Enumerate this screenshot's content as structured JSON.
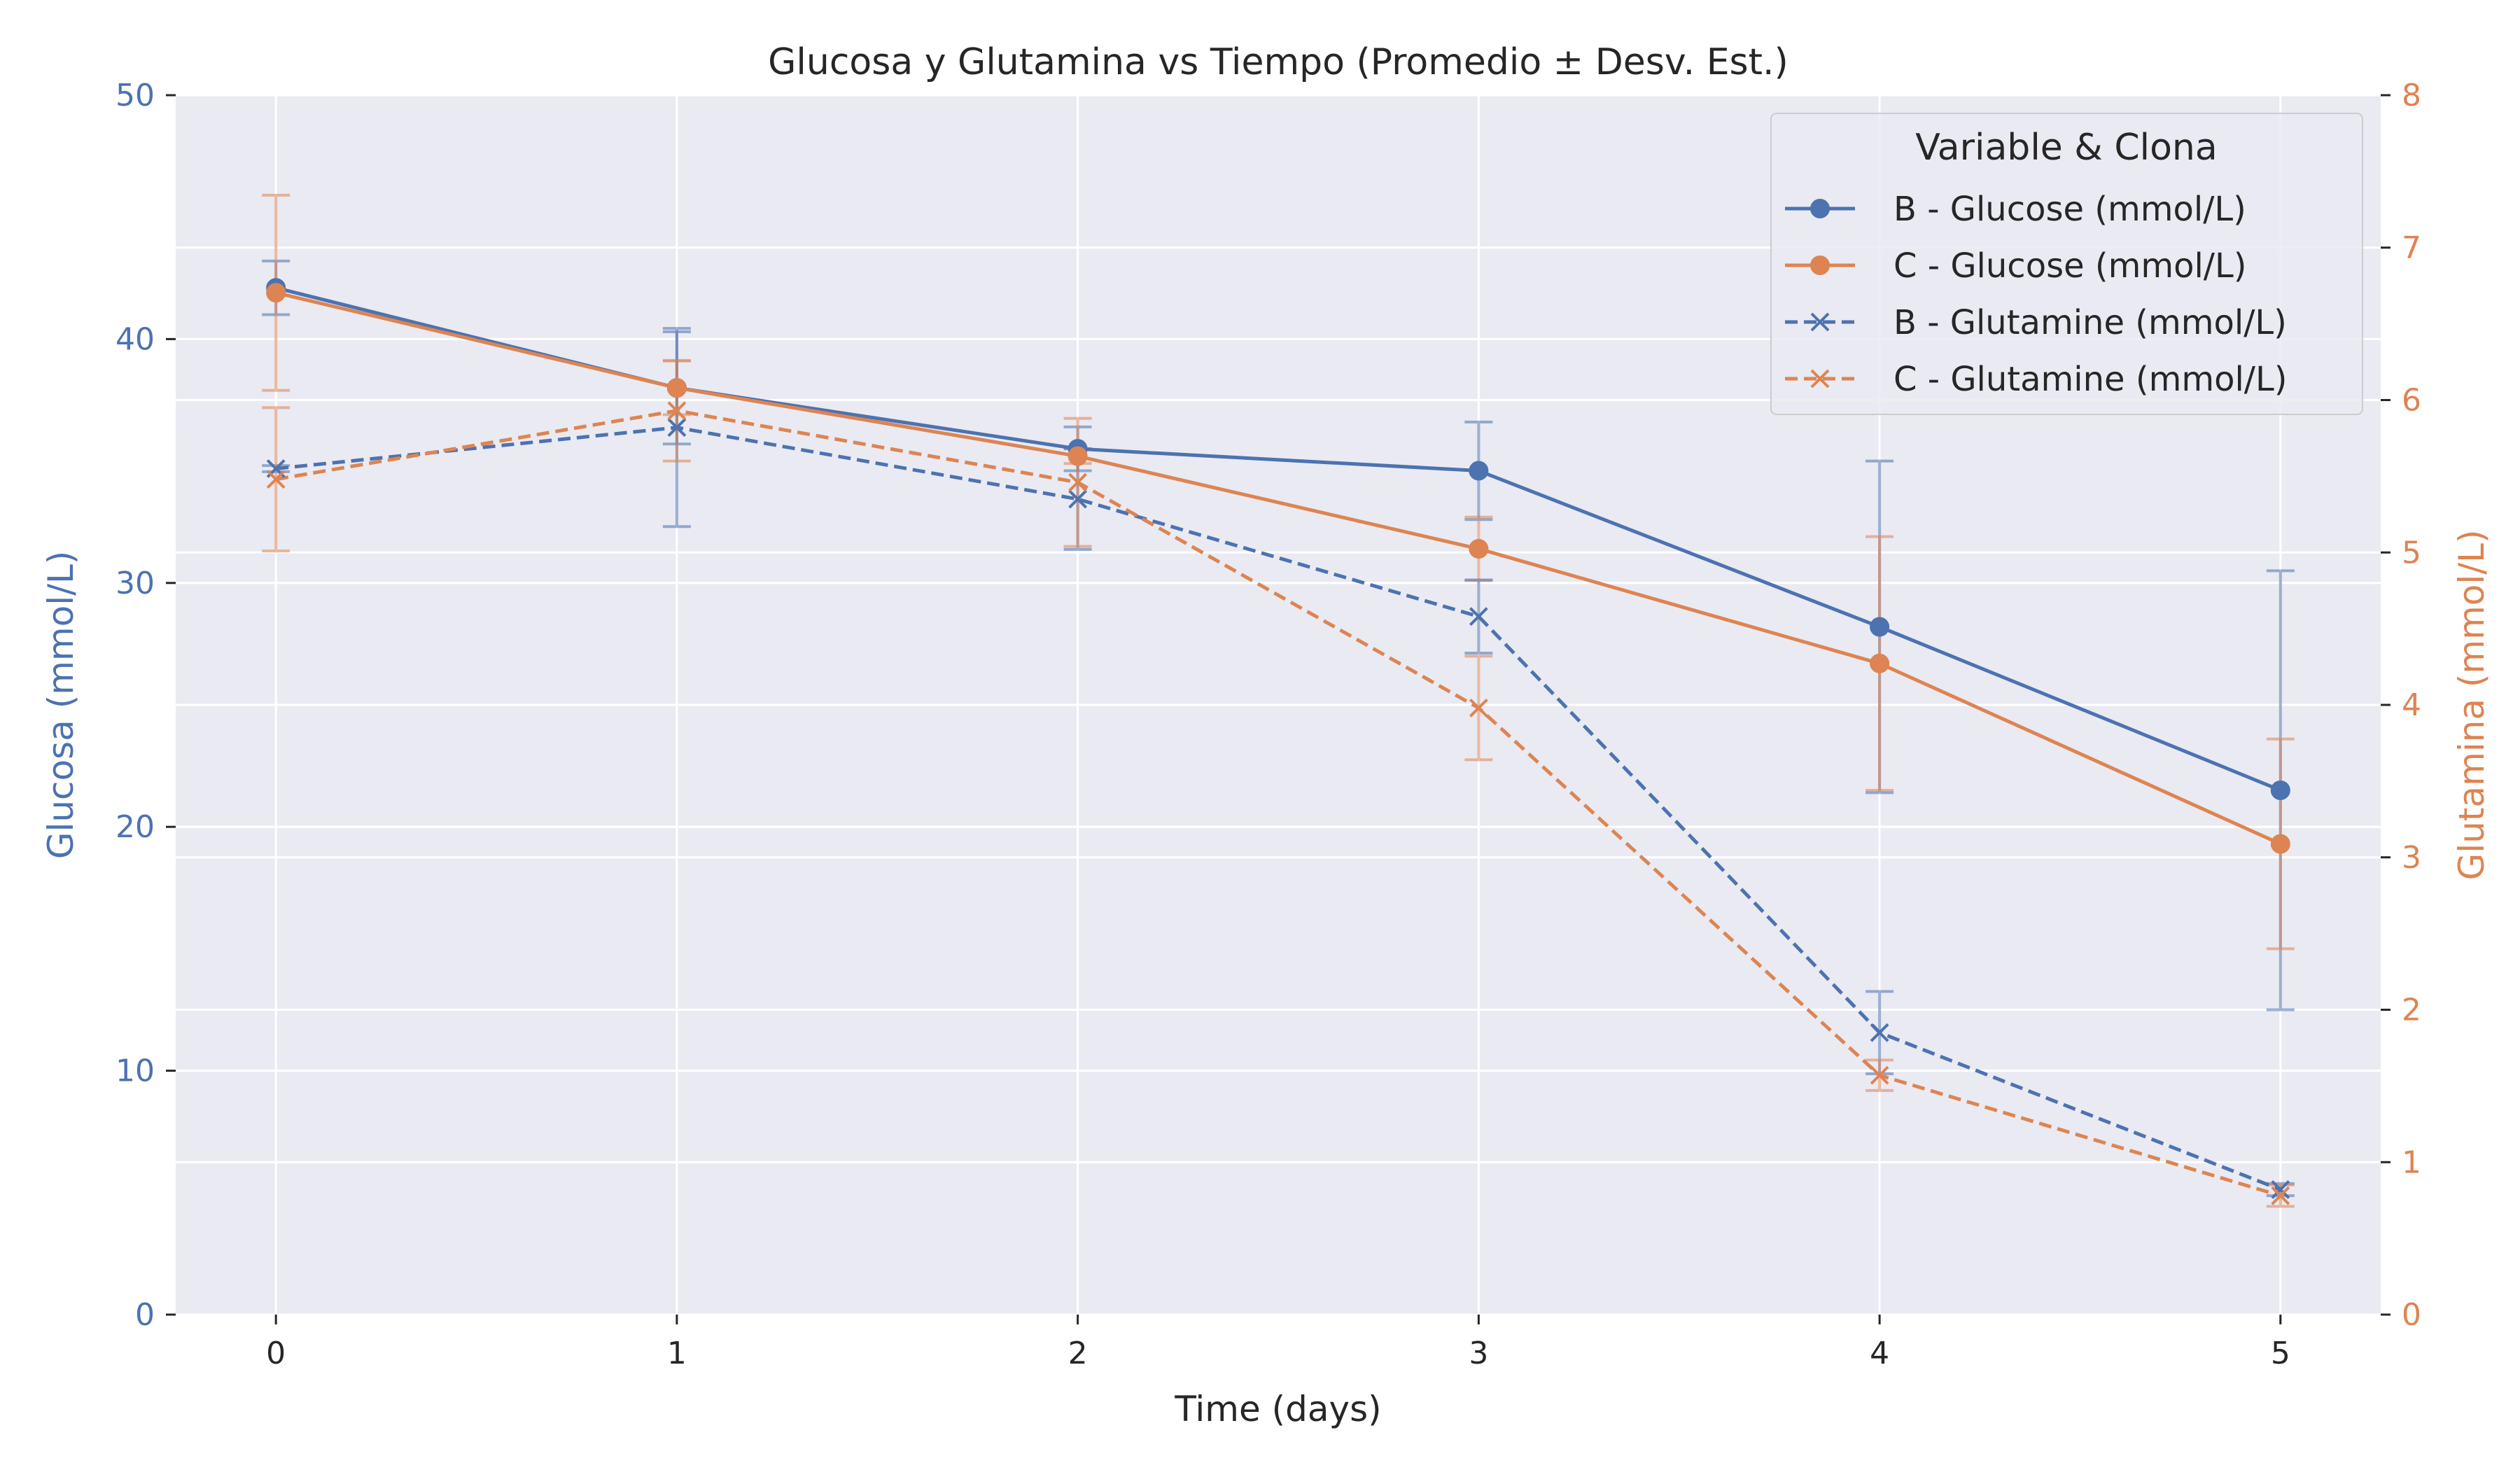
{
  "chart_data": {
    "type": "line",
    "title": "Glucosa y Glutamina vs Tiempo (Promedio ± Desv. Est.)",
    "xlabel": "Time (days)",
    "ylabel_left": "Glucosa (mmol/L)",
    "ylabel_right": "Glutamina (mmol/L)",
    "x": [
      0,
      1,
      2,
      3,
      4,
      5
    ],
    "x_ticks": [
      "0",
      "1",
      "2",
      "3",
      "4",
      "5"
    ],
    "xlim": [
      -0.25,
      5.25
    ],
    "ylim_left": [
      0,
      50
    ],
    "ylim_right": [
      0,
      8
    ],
    "y_ticks_left": [
      "0",
      "10",
      "20",
      "30",
      "40",
      "50"
    ],
    "y_ticks_right": [
      "0",
      "1",
      "2",
      "3",
      "4",
      "5",
      "6",
      "7",
      "8"
    ],
    "grid": true,
    "legend": {
      "title": "Variable & Clona",
      "placement": "top-right"
    },
    "colors": {
      "blue": "#4c72b0",
      "orange": "#dd8452",
      "background": "#eaeaf2",
      "grid": "#ffffff"
    },
    "series": [
      {
        "name": "B - Glucose (mmol/L)",
        "axis": "left",
        "color": "#4c72b0",
        "marker": "circle",
        "linestyle": "solid",
        "values": [
          42.1,
          38.0,
          35.5,
          34.6,
          28.2,
          21.5
        ],
        "std": [
          1.1,
          2.3,
          0.9,
          2.0,
          6.8,
          9.0
        ]
      },
      {
        "name": "C - Glucose (mmol/L)",
        "axis": "left",
        "color": "#dd8452",
        "marker": "circle",
        "linestyle": "solid",
        "values": [
          41.9,
          38.0,
          35.2,
          31.4,
          26.7,
          19.3
        ],
        "std": [
          4.0,
          1.1,
          0.3,
          1.3,
          5.2,
          4.3
        ]
      },
      {
        "name": "B - Glutamine (mmol/L)",
        "axis": "right",
        "color": "#4c72b0",
        "marker": "x",
        "linestyle": "dashed",
        "values": [
          5.55,
          5.82,
          5.35,
          4.58,
          1.85,
          0.82
        ],
        "std": [
          0.02,
          0.65,
          0.33,
          0.24,
          0.27,
          0.04
        ]
      },
      {
        "name": "C - Glutamine (mmol/L)",
        "axis": "right",
        "color": "#dd8452",
        "marker": "x",
        "linestyle": "dashed",
        "values": [
          5.48,
          5.93,
          5.46,
          3.98,
          1.57,
          0.78
        ],
        "std": [
          0.47,
          0.33,
          0.42,
          0.34,
          0.1,
          0.07
        ]
      }
    ]
  }
}
